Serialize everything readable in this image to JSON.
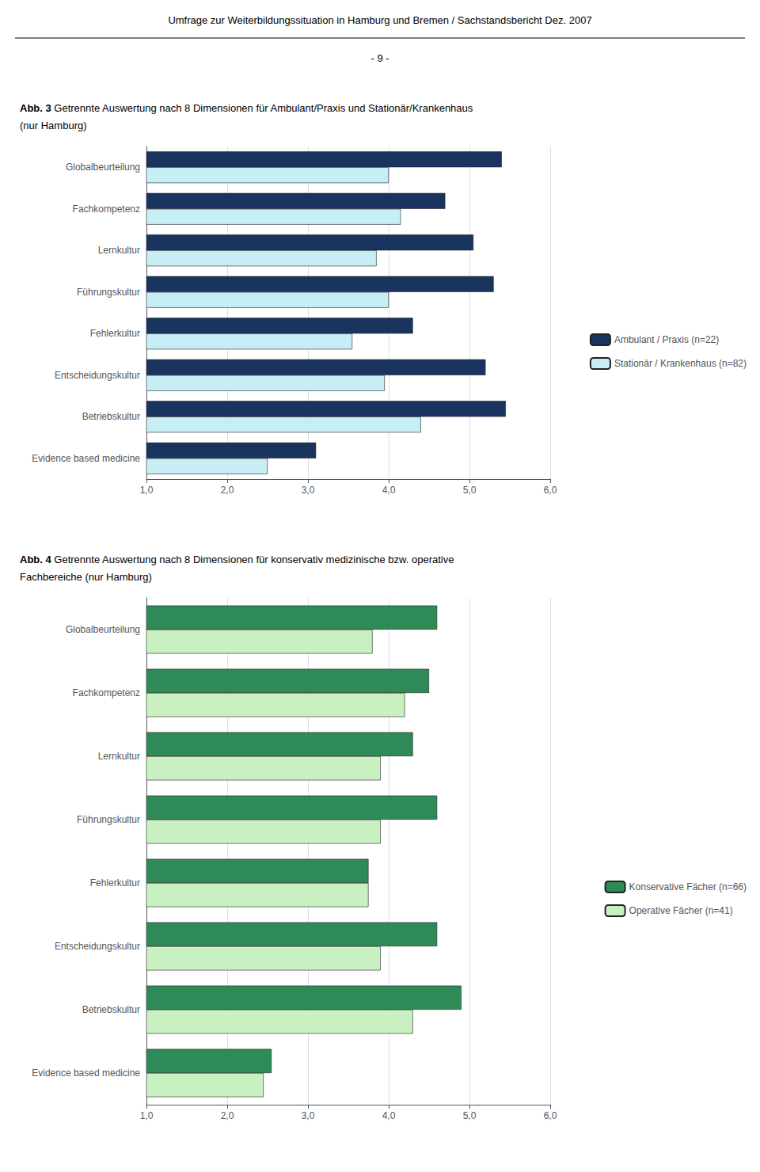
{
  "title": "Umfrage zur Weiterbildungssituation in Hamburg und Bremen / Sachstandsbericht Dez. 2007",
  "subtitle": "- 9 -",
  "chart_data": [
    {
      "type": "bar",
      "orientation": "horizontal",
      "title": "Abb. 3",
      "subtitle": "Getrennte Auswertung nach 8 Dimensionen für Ambulant/Praxis und Stationär/Krankenhaus\n(nur Hamburg)",
      "categories": [
        "Globalbeurteilung",
        "Fachkompetenz",
        "Lernkultur",
        "Führungskultur",
        "Fehlerkultur",
        "Entscheidungskultur",
        "Betriebskultur",
        "Evidence based medicine"
      ],
      "series": [
        {
          "name": "Ambulant / Praxis (n=22)",
          "color": "#1a3460",
          "values": [
            5.4,
            4.7,
            5.05,
            5.3,
            4.3,
            5.2,
            5.45,
            3.1
          ]
        },
        {
          "name": "Stationär / Krankenhaus (n=82)",
          "color": "#c8eef5",
          "values": [
            4.0,
            4.15,
            3.85,
            4.0,
            3.55,
            3.95,
            4.4,
            2.5
          ]
        }
      ],
      "xlim": [
        1.0,
        6.0
      ],
      "xticks": [
        {
          "value": 1.0,
          "label": "1,0"
        },
        {
          "value": 2.0,
          "label": "2,0"
        },
        {
          "value": 3.0,
          "label": "3,0"
        },
        {
          "value": 4.0,
          "label": "4,0"
        },
        {
          "value": 5.0,
          "label": "5,0"
        },
        {
          "value": 6.0,
          "label": "6,0"
        }
      ],
      "grid": true,
      "legend": "right"
    },
    {
      "type": "bar",
      "orientation": "horizontal",
      "title": "Abb. 4",
      "subtitle": "Getrennte Auswertung nach 8 Dimensionen für konservativ medizinische bzw. operative\nFachbereiche (nur Hamburg)",
      "categories": [
        "Globalbeurteilung",
        "Fachkompetenz",
        "Lernkultur",
        "Führungskultur",
        "Fehlerkultur",
        "Entscheidungskultur",
        "Betriebskultur",
        "Evidence based medicine"
      ],
      "series": [
        {
          "name": "Konservative Fächer (n=66)",
          "color": "#2e8b57",
          "values": [
            4.6,
            4.5,
            4.3,
            4.6,
            3.75,
            4.6,
            4.9,
            2.55
          ]
        },
        {
          "name": "Operative Fächer (n=41)",
          "color": "#c8f0c0",
          "values": [
            3.8,
            4.2,
            3.9,
            3.9,
            3.75,
            3.9,
            4.3,
            2.45
          ]
        }
      ],
      "xlim": [
        1.0,
        6.0
      ],
      "xticks": [
        {
          "value": 1.0,
          "label": "1,0"
        },
        {
          "value": 2.0,
          "label": "2,0"
        },
        {
          "value": 3.0,
          "label": "3,0"
        },
        {
          "value": 4.0,
          "label": "4,0"
        },
        {
          "value": 5.0,
          "label": "5,0"
        },
        {
          "value": 6.0,
          "label": "6,0"
        }
      ],
      "grid": true,
      "legend": "right"
    }
  ]
}
